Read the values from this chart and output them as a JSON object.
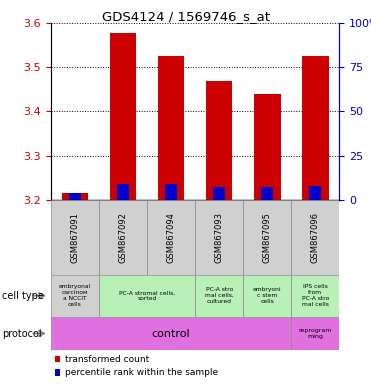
{
  "title": "GDS4124 / 1569746_s_at",
  "samples": [
    "GSM867091",
    "GSM867092",
    "GSM867094",
    "GSM867093",
    "GSM867095",
    "GSM867096"
  ],
  "red_values": [
    3.215,
    3.578,
    3.525,
    3.468,
    3.44,
    3.525
  ],
  "blue_values": [
    3.215,
    3.235,
    3.235,
    3.228,
    3.228,
    3.232
  ],
  "ylim": [
    3.2,
    3.6
  ],
  "yticks_left": [
    3.2,
    3.3,
    3.4,
    3.5,
    3.6
  ],
  "yticks_right": [
    0,
    25,
    50,
    75,
    100
  ],
  "cell_types_display": [
    [
      0,
      1,
      "embryonal\ncarcinoм\na NCCIT\ncells",
      "#d0d0d0"
    ],
    [
      1,
      3,
      "PC-A stromal cells,\nsorted",
      "#b8f0b8"
    ],
    [
      3,
      4,
      "PC-A stro\nmal cells,\ncultured",
      "#b8f0b8"
    ],
    [
      4,
      5,
      "embryoni\nc stem\ncells",
      "#b8f0b8"
    ],
    [
      5,
      6,
      "IPS cells\nfrom\nPC-A stro\nmal cells",
      "#b8f0b8"
    ]
  ],
  "protocol_color": "#e070e0",
  "bar_color_red": "#cc0000",
  "bar_color_blue": "#0000cc",
  "left_axis_color": "#cc0000",
  "right_axis_color": "#0000cc",
  "bar_width": 0.55
}
